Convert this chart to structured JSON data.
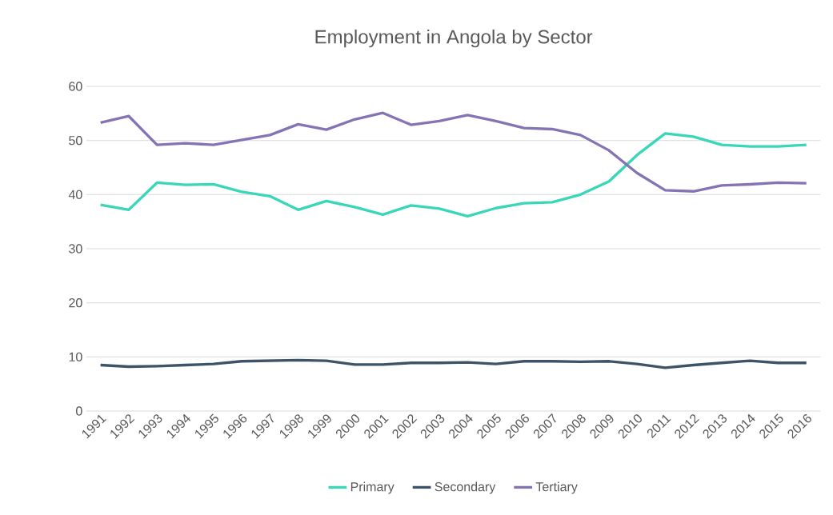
{
  "chart_data": {
    "type": "line",
    "title": "Employment in Angola by Sector",
    "categories": [
      "1991",
      "1992",
      "1993",
      "1994",
      "1995",
      "1996",
      "1997",
      "1998",
      "1999",
      "2000",
      "2001",
      "2002",
      "2003",
      "2004",
      "2005",
      "2006",
      "2007",
      "2008",
      "2009",
      "2010",
      "2011",
      "2012",
      "2013",
      "2014",
      "2015",
      "2016"
    ],
    "series": [
      {
        "name": "Primary",
        "color": "#3ad6b8",
        "values": [
          38.1,
          37.2,
          42.2,
          41.8,
          41.9,
          40.5,
          39.7,
          37.2,
          38.8,
          37.7,
          36.3,
          38.0,
          37.4,
          36.0,
          37.5,
          38.4,
          38.6,
          40.0,
          42.4,
          47.3,
          51.3,
          50.7,
          49.2,
          48.9,
          48.9,
          49.2
        ]
      },
      {
        "name": "Secondary",
        "color": "#3d5367",
        "values": [
          8.5,
          8.2,
          8.3,
          8.5,
          8.7,
          9.2,
          9.3,
          9.4,
          9.3,
          8.6,
          8.6,
          8.9,
          8.9,
          9.0,
          8.7,
          9.2,
          9.2,
          9.1,
          9.2,
          8.7,
          8.0,
          8.5,
          8.9,
          9.3,
          8.9,
          8.9
        ]
      },
      {
        "name": "Tertiary",
        "color": "#8574b4",
        "values": [
          53.3,
          54.5,
          49.2,
          49.5,
          49.2,
          50.1,
          51.0,
          53.0,
          52.0,
          53.9,
          55.1,
          52.9,
          53.6,
          54.7,
          53.6,
          52.3,
          52.1,
          51.0,
          48.2,
          44.0,
          40.8,
          40.6,
          41.7,
          41.9,
          42.2,
          42.1
        ]
      }
    ],
    "ylim": [
      0,
      60
    ],
    "yticks": [
      0,
      10,
      20,
      30,
      40,
      50,
      60
    ],
    "grid": "y",
    "legend": "bottom",
    "marker": "none",
    "line_style": "solid"
  }
}
